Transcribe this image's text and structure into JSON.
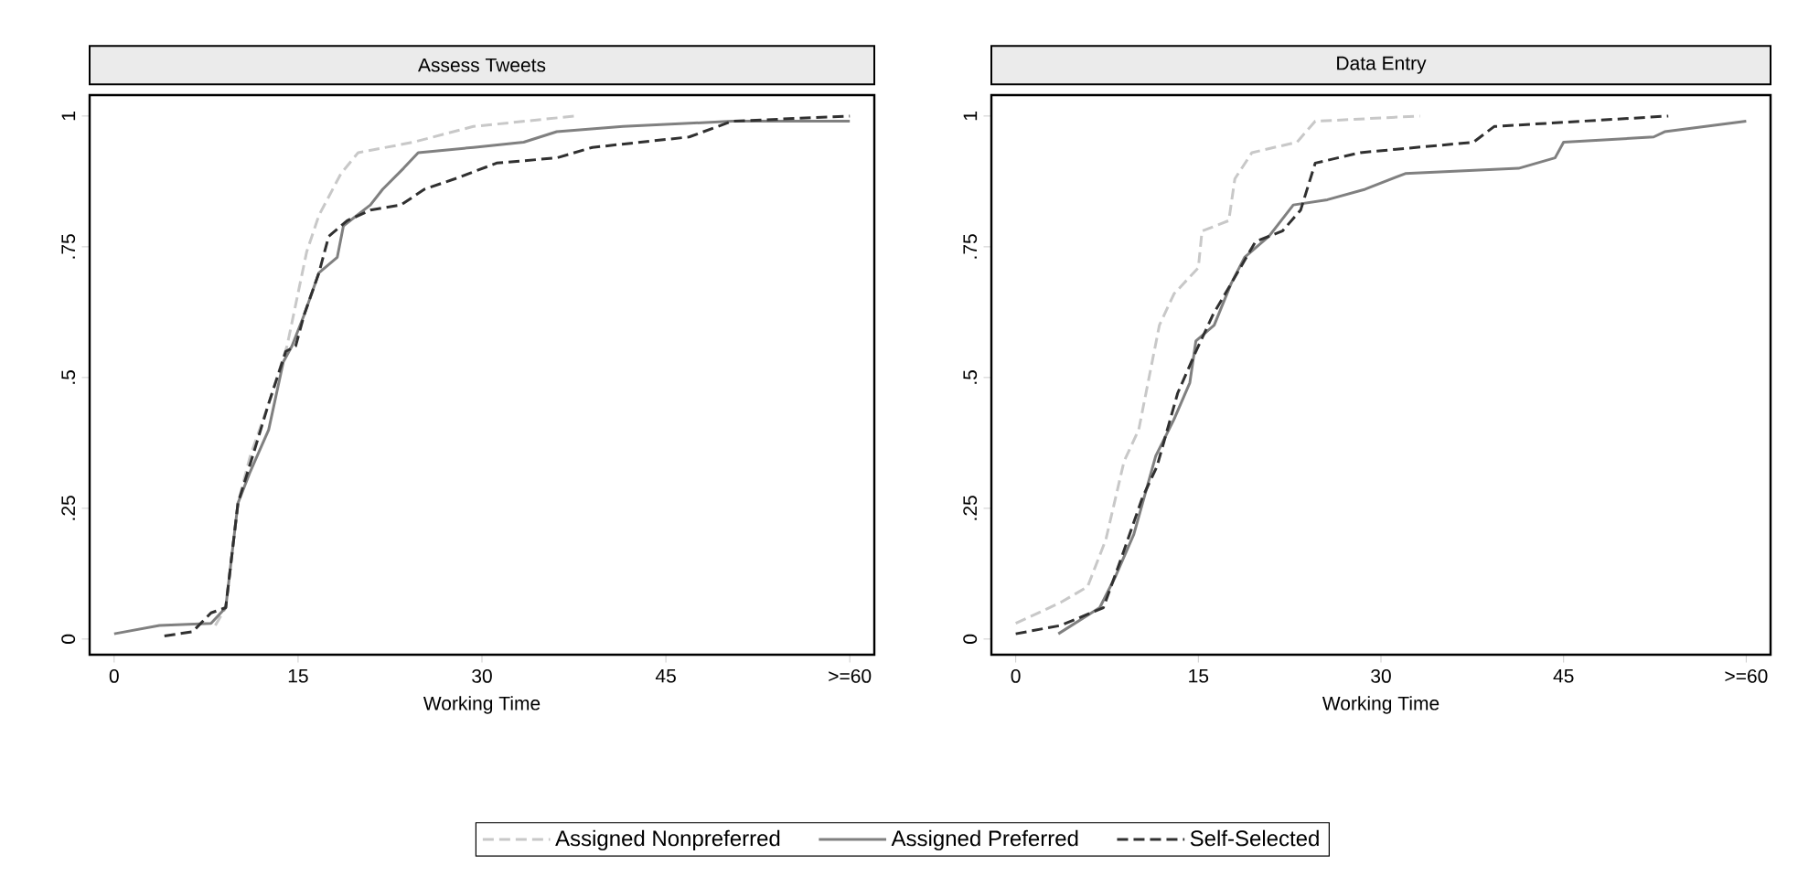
{
  "chart_data": [
    {
      "type": "line",
      "title": "Assess Tweets",
      "xlabel": "Working Time",
      "xlim": [
        -2,
        62
      ],
      "ylim": [
        -0.03,
        1.04
      ],
      "xticks": [
        0,
        15,
        30,
        45,
        {
          "value": 60,
          "label": ">=60"
        }
      ],
      "yticks": [
        {
          "value": 0,
          "label": "0"
        },
        {
          "value": 0.25,
          "label": ".25"
        },
        {
          "value": 0.5,
          "label": ".5"
        },
        {
          "value": 0.75,
          "label": ".75"
        },
        {
          "value": 1,
          "label": "1"
        }
      ],
      "grid": false,
      "legend": "bottom",
      "series": [
        {
          "name": "Assigned Nonpreferred",
          "color": "#c8c8c8",
          "line_style": "dashed",
          "x": [
            8.25,
            9.1,
            10.1,
            11.1,
            12.6,
            14.1,
            15.7,
            16.7,
            18.5,
            19.9,
            24.4,
            29.3,
            37.6
          ],
          "values": [
            0.026,
            0.06,
            0.26,
            0.35,
            0.45,
            0.56,
            0.74,
            0.81,
            0.89,
            0.93,
            0.95,
            0.98,
            1.0
          ]
        },
        {
          "name": "Assigned Preferred",
          "color": "#808080",
          "line_style": "solid",
          "x": [
            0,
            3.7,
            7.9,
            9.1,
            10.1,
            11.1,
            12.6,
            13.8,
            14.5,
            15.5,
            16.7,
            18.2,
            18.7,
            20.9,
            21.9,
            23.6,
            24.8,
            29.3,
            33.4,
            36.1,
            41.5,
            50.4,
            60
          ],
          "values": [
            0.01,
            0.026,
            0.03,
            0.06,
            0.26,
            0.32,
            0.4,
            0.53,
            0.56,
            0.62,
            0.7,
            0.73,
            0.79,
            0.83,
            0.86,
            0.9,
            0.93,
            0.94,
            0.95,
            0.97,
            0.98,
            0.99,
            0.99
          ]
        },
        {
          "name": "Self-Selected",
          "color": "#303030",
          "line_style": "dashed",
          "x": [
            4.1,
            6.4,
            7.9,
            9.1,
            10.1,
            11.3,
            12.6,
            14.0,
            14.8,
            15.5,
            16.7,
            17.5,
            19.0,
            20.9,
            23.4,
            25.3,
            27.8,
            31.2,
            36.1,
            39.0,
            46.9,
            50.4,
            60
          ],
          "values": [
            0.006,
            0.014,
            0.05,
            0.06,
            0.26,
            0.35,
            0.45,
            0.55,
            0.56,
            0.62,
            0.7,
            0.77,
            0.8,
            0.82,
            0.83,
            0.86,
            0.88,
            0.91,
            0.92,
            0.94,
            0.96,
            0.99,
            1.0
          ]
        }
      ]
    },
    {
      "type": "line",
      "title": "Data Entry",
      "xlabel": "Working Time",
      "xlim": [
        -2,
        62
      ],
      "ylim": [
        -0.03,
        1.04
      ],
      "xticks": [
        0,
        15,
        30,
        45,
        {
          "value": 60,
          "label": ">=60"
        }
      ],
      "yticks": [
        {
          "value": 0,
          "label": "0"
        },
        {
          "value": 0.25,
          "label": ".25"
        },
        {
          "value": 0.5,
          "label": ".5"
        },
        {
          "value": 0.75,
          "label": ".75"
        },
        {
          "value": 1,
          "label": "1"
        }
      ],
      "grid": false,
      "series": [
        {
          "color": "#c8c8c8",
          "line_style": "dashed",
          "x": [
            0,
            3.7,
            5.9,
            7.4,
            8.9,
            10.1,
            11.8,
            13.0,
            15.0,
            15.3,
            17.5,
            18.0,
            19.4,
            23.1,
            24.6,
            33.2
          ],
          "values": [
            0.03,
            0.07,
            0.1,
            0.19,
            0.34,
            0.4,
            0.6,
            0.66,
            0.71,
            0.78,
            0.8,
            0.88,
            0.93,
            0.95,
            0.99,
            1.0
          ]
        },
        {
          "color": "#808080",
          "line_style": "solid",
          "x": [
            3.5,
            6.9,
            8.2,
            9.7,
            11.5,
            13.0,
            14.3,
            14.8,
            16.3,
            17.7,
            18.8,
            20.8,
            22.8,
            25.6,
            28.7,
            32.0,
            41.3,
            44.3,
            45.0,
            52.4,
            53.3,
            60
          ],
          "values": [
            0.01,
            0.06,
            0.12,
            0.2,
            0.35,
            0.42,
            0.49,
            0.57,
            0.6,
            0.68,
            0.73,
            0.77,
            0.83,
            0.84,
            0.86,
            0.89,
            0.9,
            0.92,
            0.95,
            0.96,
            0.97,
            0.99
          ]
        },
        {
          "color": "#303030",
          "line_style": "dashed",
          "x": [
            0,
            3.7,
            7.2,
            8.6,
            10.4,
            11.6,
            13.3,
            14.8,
            16.2,
            19.7,
            21.9,
            23.4,
            24.6,
            28.3,
            37.6,
            39.3,
            53.6
          ],
          "values": [
            0.01,
            0.026,
            0.06,
            0.15,
            0.27,
            0.33,
            0.47,
            0.55,
            0.62,
            0.76,
            0.78,
            0.82,
            0.91,
            0.93,
            0.95,
            0.98,
            1.0
          ]
        }
      ]
    }
  ]
}
